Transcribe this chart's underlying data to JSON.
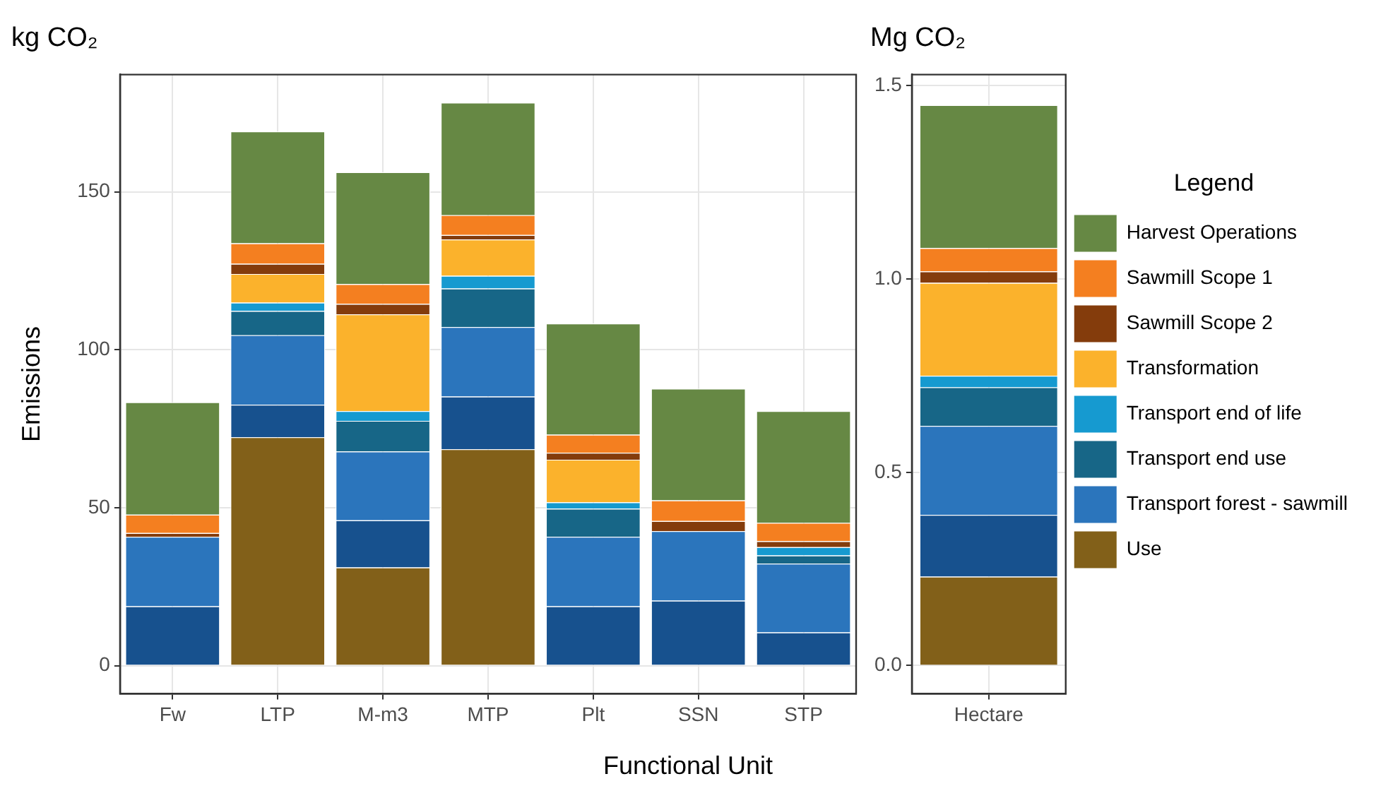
{
  "chart_data": [
    {
      "type": "bar",
      "title": "kg CO₂",
      "xlabel": "Functional Unit",
      "ylabel": "Emissions",
      "stacked": true,
      "grid": true,
      "categories": [
        "Fw",
        "LTP",
        "M-m3",
        "MTP",
        "Plt",
        "SSN",
        "STP"
      ],
      "ylim": [
        -8.9,
        187.1
      ],
      "yticks": [
        0,
        50,
        100,
        150
      ],
      "series": [
        {
          "color": "#826019",
          "values": [
            0,
            72.3,
            31.1,
            68.5,
            0,
            0,
            0
          ]
        },
        {
          "color": "#17518e",
          "values": [
            18.8,
            10.3,
            14.9,
            16.7,
            18.8,
            20.6,
            10.5
          ]
        },
        {
          "color": "#2b75bc",
          "values": [
            22.0,
            22.0,
            21.8,
            22.0,
            22.0,
            22.0,
            21.8
          ]
        },
        {
          "color": "#176687",
          "values": [
            0,
            7.7,
            9.7,
            12.2,
            8.9,
            0,
            2.6
          ]
        },
        {
          "color": "#169ad0",
          "values": [
            0,
            2.6,
            3.1,
            4.0,
            2.0,
            0,
            2.6
          ]
        },
        {
          "color": "#fbb22c",
          "values": [
            0,
            9.1,
            30.6,
            11.5,
            13.5,
            0,
            0
          ]
        },
        {
          "color": "#843c0c",
          "values": [
            1.2,
            3.2,
            3.3,
            1.4,
            2.2,
            3.2,
            1.9
          ]
        },
        {
          "color": "#f47f20",
          "values": [
            5.8,
            6.5,
            6.3,
            6.3,
            5.7,
            6.5,
            5.8
          ]
        },
        {
          "color": "#668844",
          "values": [
            35.6,
            35.4,
            35.4,
            35.6,
            35.2,
            35.4,
            35.4
          ]
        }
      ]
    },
    {
      "type": "bar",
      "title": "Mg CO₂",
      "stacked": true,
      "grid": true,
      "legend": "right",
      "legend_title": "Legend",
      "categories": [
        "Hectare"
      ],
      "ylim": [
        -0.073,
        1.529
      ],
      "yticks": [
        {
          "value": 0,
          "label": "0.0"
        },
        0.5,
        {
          "value": 1,
          "label": "1.0"
        },
        1.5
      ],
      "series": [
        {
          "name": "Use",
          "color": "#826019",
          "values": [
            0.23
          ]
        },
        {
          "color": "#17518e",
          "values": [
            0.16
          ]
        },
        {
          "name": "Transport forest - sawmill",
          "color": "#2b75bc",
          "values": [
            0.23
          ]
        },
        {
          "name": "Transport end use",
          "color": "#176687",
          "values": [
            0.1
          ]
        },
        {
          "name": "Transport end of life",
          "color": "#169ad0",
          "values": [
            0.03
          ]
        },
        {
          "name": "Transformation",
          "color": "#fbb22c",
          "values": [
            0.24
          ]
        },
        {
          "name": "Sawmill Scope 2",
          "color": "#843c0c",
          "values": [
            0.03
          ]
        },
        {
          "name": "Sawmill Scope 1",
          "color": "#f47f20",
          "values": [
            0.06
          ]
        },
        {
          "name": "Harvest Operations",
          "color": "#668844",
          "values": [
            0.37
          ]
        }
      ]
    }
  ]
}
